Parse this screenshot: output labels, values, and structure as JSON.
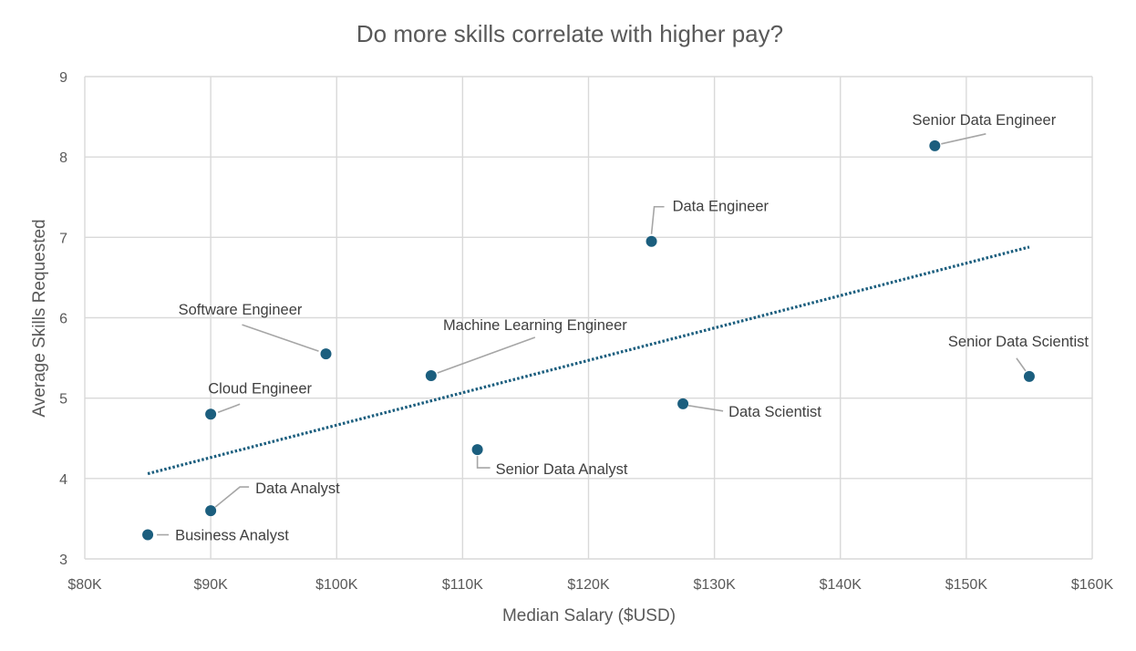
{
  "chart_data": {
    "type": "scatter",
    "title": "Do more skills correlate with higher pay?",
    "xlabel": "Median Salary ($USD)",
    "ylabel": "Average Skills Requested",
    "xlim": [
      80000,
      160000
    ],
    "ylim": [
      3,
      9
    ],
    "x_ticks": [
      80000,
      90000,
      100000,
      110000,
      120000,
      130000,
      140000,
      150000,
      160000
    ],
    "x_tick_labels": [
      "$80K",
      "$90K",
      "$100K",
      "$110K",
      "$120K",
      "$130K",
      "$140K",
      "$150K",
      "$160K"
    ],
    "y_ticks": [
      3,
      4,
      5,
      6,
      7,
      8,
      9
    ],
    "y_tick_labels": [
      "3",
      "4",
      "5",
      "6",
      "7",
      "8",
      "9"
    ],
    "grid": true,
    "legend": "none",
    "marker_color": "#1b5e7e",
    "trendline": {
      "type": "linear",
      "style": "dotted",
      "color": "#1b5e7e",
      "x": [
        85000,
        155000
      ],
      "y": [
        4.06,
        6.88
      ]
    },
    "points": [
      {
        "label": "Business Analyst",
        "x": 85000,
        "y": 3.3
      },
      {
        "label": "Data Analyst",
        "x": 90000,
        "y": 3.6
      },
      {
        "label": "Cloud Engineer",
        "x": 90000,
        "y": 4.8
      },
      {
        "label": "Software Engineer",
        "x": 99150,
        "y": 5.55
      },
      {
        "label": "Machine Learning Engineer",
        "x": 107500,
        "y": 5.28
      },
      {
        "label": "Senior Data Analyst",
        "x": 111175,
        "y": 4.36
      },
      {
        "label": "Data Engineer",
        "x": 125000,
        "y": 6.95
      },
      {
        "label": "Data Scientist",
        "x": 127500,
        "y": 4.93
      },
      {
        "label": "Senior Data Engineer",
        "x": 147500,
        "y": 8.14
      },
      {
        "label": "Senior Data Scientist",
        "x": 155000,
        "y": 5.27
      }
    ]
  }
}
